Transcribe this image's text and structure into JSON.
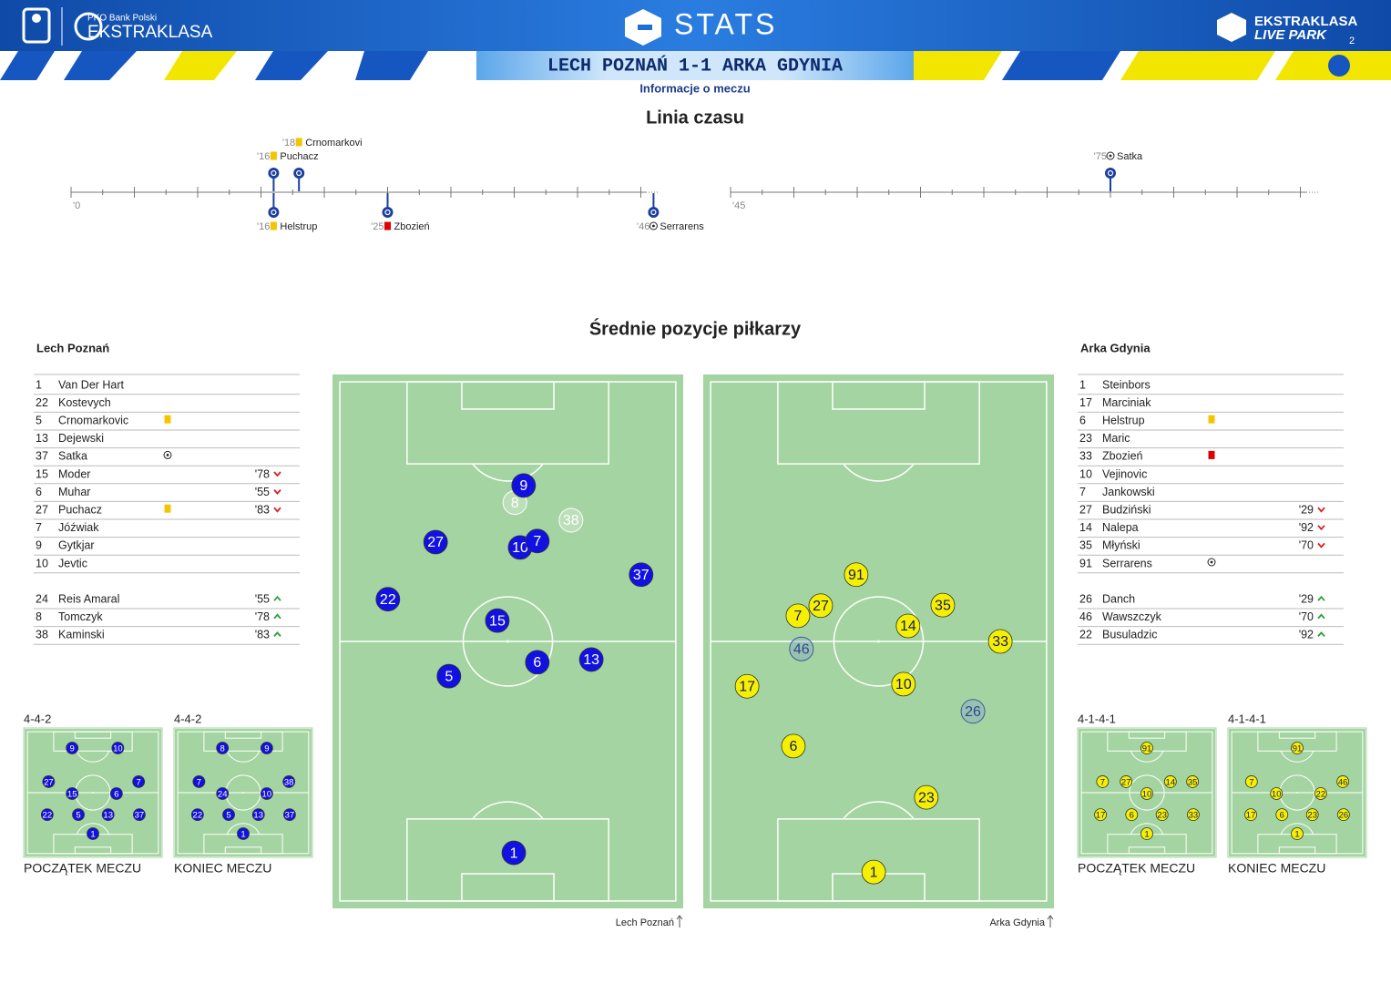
{
  "header": {
    "bank": "PKO Bank Polski",
    "league": "EKSTRAKLASA",
    "stats": "STATS",
    "live_top": "EKSTRAKLASA",
    "live_bottom": "LIVE PARK",
    "page": "2",
    "match": "LECH POZNAŃ 1-1 ARKA GDYNIA",
    "subtitle": "Informacje o meczu"
  },
  "timeline": {
    "title": "Linia czasu",
    "half_starts": [
      "'0",
      "'45"
    ],
    "home_events": [
      {
        "minute": "'16",
        "icon": "yellow-card",
        "player": "Puchacz"
      },
      {
        "minute": "'18",
        "icon": "yellow-card",
        "player": "Crnomarkovi"
      },
      {
        "minute": "'75",
        "icon": "goal",
        "player": "Satka"
      }
    ],
    "away_events": [
      {
        "minute": "'16",
        "icon": "yellow-card",
        "player": "Helstrup"
      },
      {
        "minute": "'25",
        "icon": "red-card",
        "player": "Zbozień"
      },
      {
        "minute": "'46",
        "icon": "goal",
        "player": "Serrarens"
      }
    ]
  },
  "positions": {
    "title": "Średnie pozycje piłkarzy",
    "teams": [
      {
        "name": "Lech Poznań",
        "color": "#1212e0",
        "text_color": "#ffffff",
        "lineup": [
          {
            "n": 1,
            "name": "Van Der Hart"
          },
          {
            "n": 22,
            "name": "Kostevych"
          },
          {
            "n": 5,
            "name": "Crnomarkovic",
            "icon": "yellow-card"
          },
          {
            "n": 13,
            "name": "Dejewski"
          },
          {
            "n": 37,
            "name": "Satka",
            "icon": "goal"
          },
          {
            "n": 15,
            "name": "Moder",
            "sub": "'78"
          },
          {
            "n": 6,
            "name": "Muhar",
            "sub": "'55"
          },
          {
            "n": 27,
            "name": "Puchacz",
            "icon": "yellow-card",
            "sub": "'83"
          },
          {
            "n": 7,
            "name": "Jóźwiak"
          },
          {
            "n": 9,
            "name": "Gytkjar"
          },
          {
            "n": 10,
            "name": "Jevtic"
          }
        ],
        "subs": [
          {
            "n": 24,
            "name": "Reis Amaral",
            "sub": "'55"
          },
          {
            "n": 8,
            "name": "Tomczyk",
            "sub": "'78"
          },
          {
            "n": 38,
            "name": "Kaminski",
            "sub": "'83"
          }
        ],
        "pitch": [
          {
            "n": 8,
            "x": 52,
            "y": 24
          },
          {
            "n": 38,
            "x": 68,
            "y": 27.3
          },
          {
            "n": 9,
            "x": 54.5,
            "y": 20.8
          },
          {
            "n": 27,
            "x": 29.4,
            "y": 31.4
          },
          {
            "n": 10,
            "x": 53.5,
            "y": 32.4
          },
          {
            "n": 7,
            "x": 58.4,
            "y": 31.2
          },
          {
            "n": 37,
            "x": 88,
            "y": 37.5
          },
          {
            "n": 22,
            "x": 15.8,
            "y": 42.1
          },
          {
            "n": 15,
            "x": 47,
            "y": 46.1
          },
          {
            "n": 6,
            "x": 58.4,
            "y": 53.9
          },
          {
            "n": 13,
            "x": 73.8,
            "y": 53.4
          },
          {
            "n": 5,
            "x": 33.2,
            "y": 56.5
          },
          {
            "n": 1,
            "x": 51.7,
            "y": 89.6
          }
        ],
        "formations": [
          {
            "label": "4-4-2",
            "caption": "POCZĄTEK MECZU",
            "dots": [
              {
                "n": 9,
                "x": 35,
                "y": 15.5
              },
              {
                "n": 10,
                "x": 68,
                "y": 15.5
              },
              {
                "n": 27,
                "x": 18,
                "y": 41.5
              },
              {
                "n": 15,
                "x": 35,
                "y": 50.7
              },
              {
                "n": 6,
                "x": 67,
                "y": 50.7
              },
              {
                "n": 7,
                "x": 83,
                "y": 41.5
              },
              {
                "n": 22,
                "x": 17,
                "y": 67
              },
              {
                "n": 5,
                "x": 39.5,
                "y": 67
              },
              {
                "n": 13,
                "x": 61,
                "y": 67
              },
              {
                "n": 37,
                "x": 83.5,
                "y": 67
              },
              {
                "n": 1,
                "x": 50,
                "y": 81.7
              }
            ]
          },
          {
            "label": "4-4-2",
            "caption": "KONIEC MECZU",
            "dots": [
              {
                "n": 8,
                "x": 35,
                "y": 15.5
              },
              {
                "n": 9,
                "x": 67,
                "y": 15.5
              },
              {
                "n": 7,
                "x": 18,
                "y": 41.5
              },
              {
                "n": 24,
                "x": 35,
                "y": 50.7
              },
              {
                "n": 10,
                "x": 67,
                "y": 50.7
              },
              {
                "n": 38,
                "x": 83,
                "y": 41.5
              },
              {
                "n": 22,
                "x": 17,
                "y": 67
              },
              {
                "n": 5,
                "x": 39.5,
                "y": 67
              },
              {
                "n": 13,
                "x": 61,
                "y": 67
              },
              {
                "n": 37,
                "x": 83.5,
                "y": 67
              },
              {
                "n": 1,
                "x": 50,
                "y": 81.7
              }
            ]
          }
        ],
        "footer": "Lech Poznań"
      },
      {
        "name": "Arka Gdynia",
        "color": "#f5f000",
        "text_color": "#1a1a60",
        "lineup": [
          {
            "n": 1,
            "name": "Steinbors"
          },
          {
            "n": 17,
            "name": "Marciniak"
          },
          {
            "n": 6,
            "name": "Helstrup",
            "icon": "yellow-card"
          },
          {
            "n": 23,
            "name": "Maric"
          },
          {
            "n": 33,
            "name": "Zbozień",
            "icon": "red-card"
          },
          {
            "n": 10,
            "name": "Vejinovic"
          },
          {
            "n": 7,
            "name": "Jankowski"
          },
          {
            "n": 27,
            "name": "Budziński",
            "sub": "'29"
          },
          {
            "n": 14,
            "name": "Nalepa",
            "sub": "'92"
          },
          {
            "n": 35,
            "name": "Młyński",
            "sub": "'70"
          },
          {
            "n": 91,
            "name": "Serrarens",
            "icon": "goal"
          }
        ],
        "subs": [
          {
            "n": 26,
            "name": "Danch",
            "sub": "'29"
          },
          {
            "n": 46,
            "name": "Wawszczyk",
            "sub": "'70"
          },
          {
            "n": 22,
            "name": "Busuladzic",
            "sub": "'92"
          }
        ],
        "pitch": [
          {
            "n": 46,
            "x": 28,
            "y": 51.4
          },
          {
            "n": 26,
            "x": 76.9,
            "y": 63.1
          },
          {
            "n": 91,
            "x": 43.6,
            "y": 37.5
          },
          {
            "n": 27,
            "x": 33.5,
            "y": 43.3
          },
          {
            "n": 7,
            "x": 27,
            "y": 45.2
          },
          {
            "n": 35,
            "x": 68.3,
            "y": 43.2
          },
          {
            "n": 14,
            "x": 58.4,
            "y": 47.1
          },
          {
            "n": 33,
            "x": 84.7,
            "y": 50
          },
          {
            "n": 17,
            "x": 12.5,
            "y": 58.4
          },
          {
            "n": 10,
            "x": 57.1,
            "y": 58
          },
          {
            "n": 6,
            "x": 25.7,
            "y": 69.6
          },
          {
            "n": 23,
            "x": 63.6,
            "y": 79.2
          },
          {
            "n": 1,
            "x": 48.6,
            "y": 93.2
          }
        ],
        "formations": [
          {
            "label": "4-1-4-1",
            "caption": "POCZĄTEK MECZU",
            "dots": [
              {
                "n": 91,
                "x": 50,
                "y": 15.5
              },
              {
                "n": 7,
                "x": 18,
                "y": 41.5
              },
              {
                "n": 27,
                "x": 35,
                "y": 41.5
              },
              {
                "n": 10,
                "x": 50,
                "y": 50.7
              },
              {
                "n": 14,
                "x": 67,
                "y": 41.5
              },
              {
                "n": 35,
                "x": 83,
                "y": 41.5
              },
              {
                "n": 17,
                "x": 16.5,
                "y": 67
              },
              {
                "n": 6,
                "x": 39,
                "y": 67
              },
              {
                "n": 23,
                "x": 61,
                "y": 67
              },
              {
                "n": 33,
                "x": 83.5,
                "y": 67
              },
              {
                "n": 1,
                "x": 50,
                "y": 81.7
              }
            ]
          },
          {
            "label": "4-1-4-1",
            "caption": "KONIEC MECZU",
            "dots": [
              {
                "n": 91,
                "x": 50,
                "y": 15.5
              },
              {
                "n": 7,
                "x": 17,
                "y": 41.5
              },
              {
                "n": 10,
                "x": 35,
                "y": 50.7
              },
              {
                "n": 22,
                "x": 67,
                "y": 50.7
              },
              {
                "n": 46,
                "x": 83,
                "y": 41.5
              },
              {
                "n": 17,
                "x": 16.5,
                "y": 67
              },
              {
                "n": 6,
                "x": 39,
                "y": 67
              },
              {
                "n": 23,
                "x": 61,
                "y": 67
              },
              {
                "n": 26,
                "x": 83.5,
                "y": 67
              },
              {
                "n": 1,
                "x": 50,
                "y": 81.7
              }
            ]
          }
        ],
        "footer": "Arka Gdynia"
      }
    ]
  }
}
